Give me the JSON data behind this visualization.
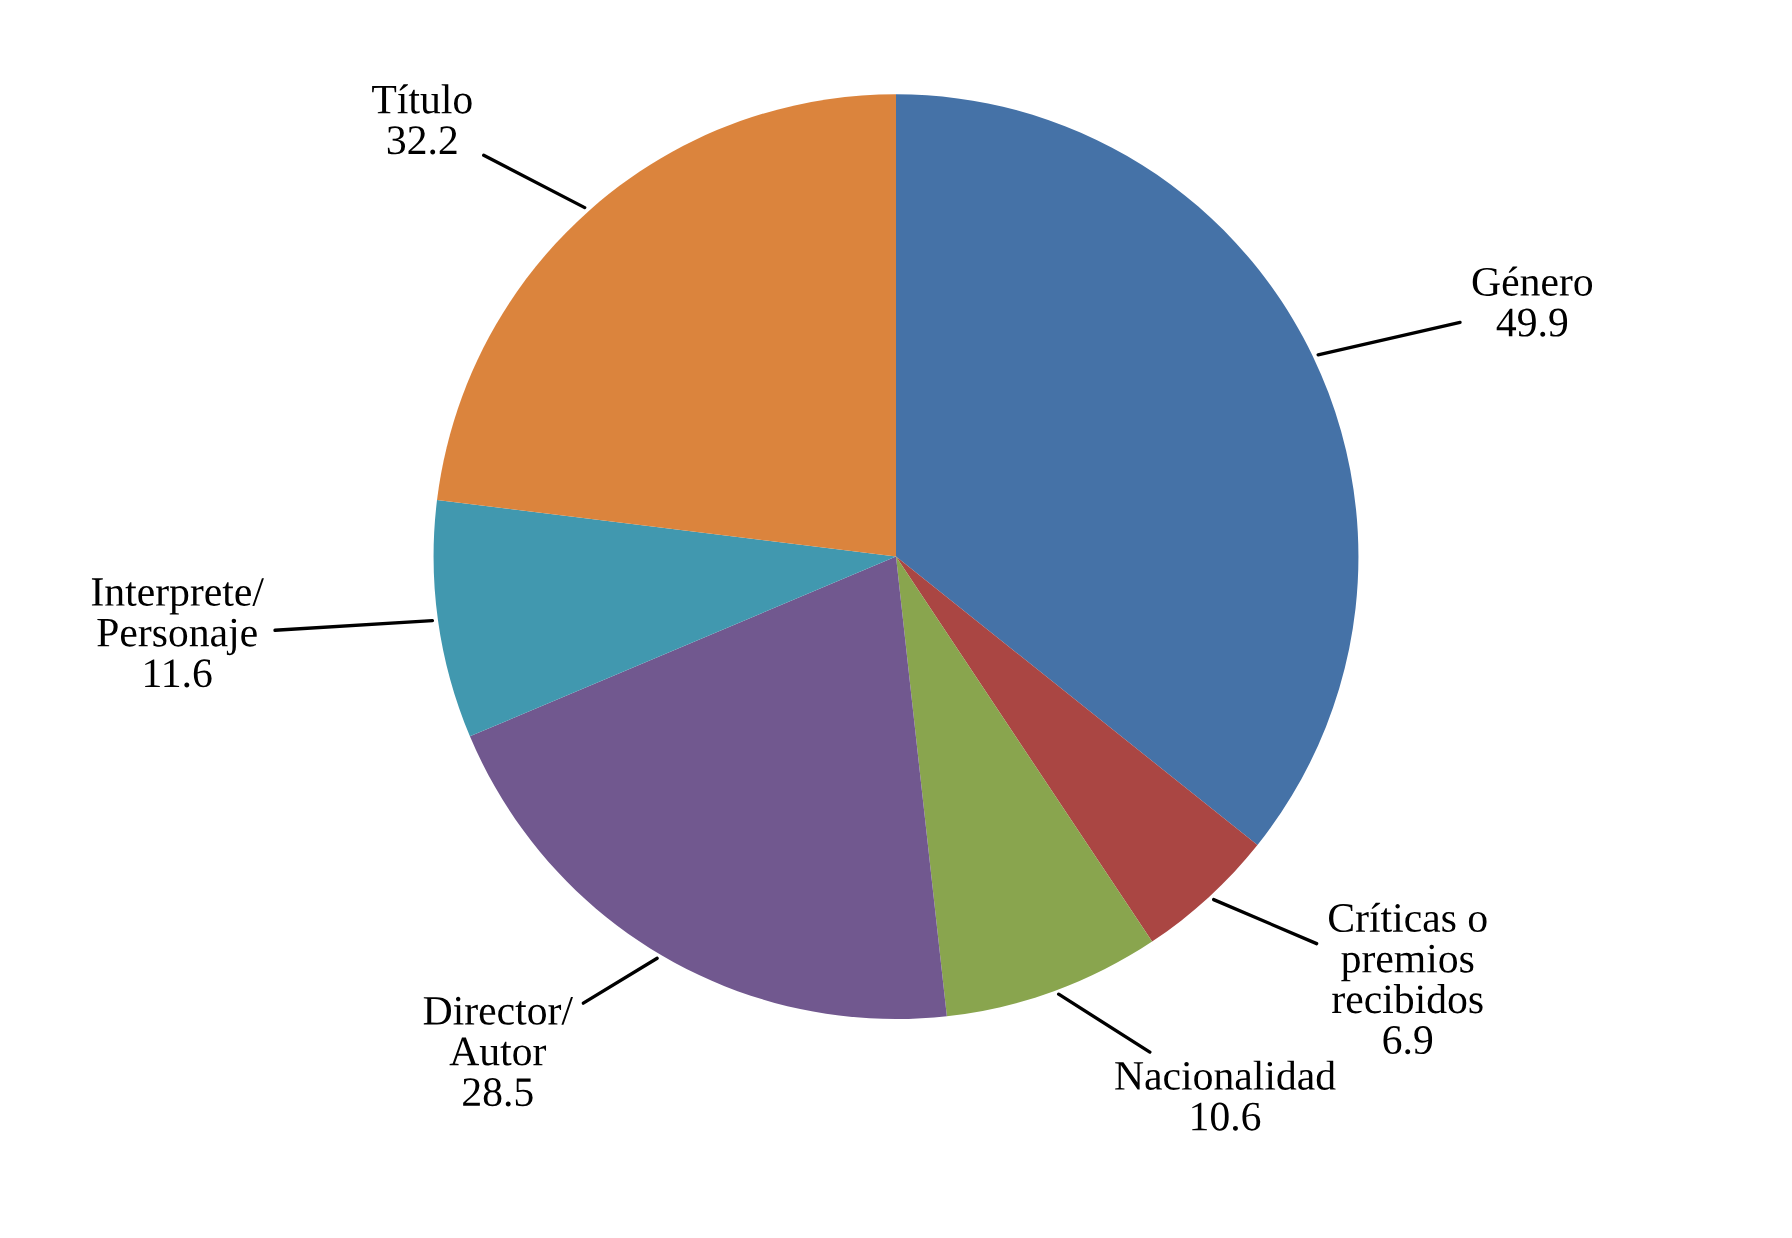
{
  "chart_data": {
    "type": "pie",
    "categories": [
      "Género",
      "Críticas o\npremios\nrecibidos",
      "Nacionalidad",
      "Director/\nAutor",
      "Interprete/\nPersonaje",
      "Título"
    ],
    "values": [
      49.9,
      6.9,
      10.6,
      28.5,
      11.6,
      32.2
    ],
    "colors": [
      "#4572a7",
      "#aa4643",
      "#89a54e",
      "#71588f",
      "#4198af",
      "#db843d"
    ],
    "data_labels": true,
    "legend": false
  }
}
